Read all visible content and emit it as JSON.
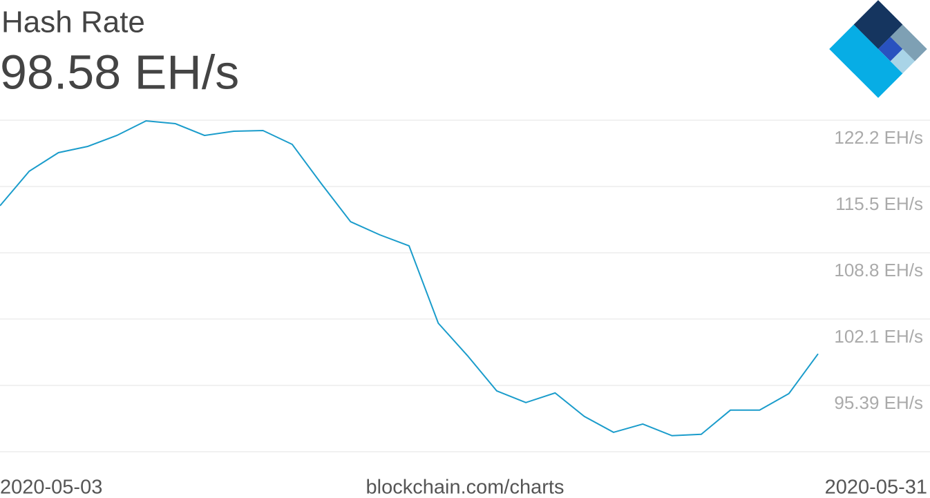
{
  "chart_data": {
    "type": "line",
    "title": "Hash Rate",
    "subtitle": "98.58 EH/s",
    "source": "blockchain.com/charts",
    "x": [
      "2020-05-03",
      "2020-05-04",
      "2020-05-05",
      "2020-05-06",
      "2020-05-07",
      "2020-05-08",
      "2020-05-09",
      "2020-05-10",
      "2020-05-11",
      "2020-05-12",
      "2020-05-13",
      "2020-05-14",
      "2020-05-15",
      "2020-05-16",
      "2020-05-17",
      "2020-05-18",
      "2020-05-19",
      "2020-05-20",
      "2020-05-21",
      "2020-05-22",
      "2020-05-23",
      "2020-05-24",
      "2020-05-25",
      "2020-05-26",
      "2020-05-27",
      "2020-05-28",
      "2020-05-29",
      "2020-05-30",
      "2020-05-31"
    ],
    "series": [
      {
        "name": "Hash Rate",
        "color": "#1a9ccb",
        "values": [
          113.55,
          117.04,
          118.92,
          119.55,
          120.66,
          122.13,
          121.85,
          120.66,
          121.08,
          121.15,
          119.76,
          115.78,
          111.94,
          110.61,
          109.5,
          101.68,
          98.4,
          94.84,
          93.66,
          94.63,
          92.26,
          90.65,
          91.49,
          90.31,
          90.45,
          92.89,
          92.89,
          94.56,
          98.58
        ]
      }
    ],
    "ylim": [
      88.69,
      122.2
    ],
    "yticks": [
      {
        "value": 122.2,
        "label": "122.2 EH/s"
      },
      {
        "value": 115.5,
        "label": "115.5 EH/s"
      },
      {
        "value": 108.8,
        "label": "108.8 EH/s"
      },
      {
        "value": 102.1,
        "label": "102.1 EH/s"
      },
      {
        "value": 95.39,
        "label": "95.39 EH/s"
      }
    ],
    "grid": true
  }
}
